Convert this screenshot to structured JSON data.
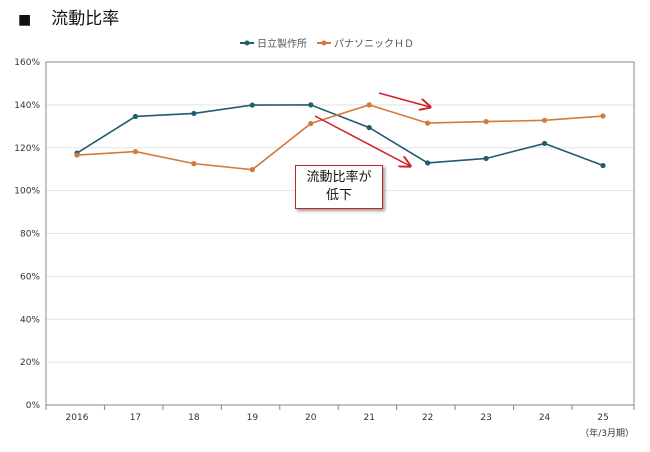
{
  "heading": {
    "marker": "■",
    "text": "流動比率"
  },
  "chart_data": {
    "type": "line",
    "title": "",
    "categories": [
      "2016",
      "17",
      "18",
      "19",
      "20",
      "21",
      "22",
      "23",
      "24",
      "25"
    ],
    "xlabel": "（年/3月期）",
    "ylabel": "",
    "ylim": [
      0,
      160
    ],
    "yticks": [
      "0%",
      "20%",
      "40%",
      "60%",
      "80%",
      "100%",
      "120%",
      "140%",
      "160%"
    ],
    "grid": true,
    "legend": "top-center",
    "series": [
      {
        "name": "日立製作所",
        "color": "#1f5c70",
        "values": [
          117.5,
          134.6,
          136,
          139.9,
          140,
          129.4,
          112.9,
          115,
          122,
          111.7
        ]
      },
      {
        "name": "パナソニックＨＤ",
        "color": "#d4793a",
        "values": [
          116.6,
          118.2,
          112.6,
          109.8,
          131.3,
          140,
          131.5,
          132.2,
          132.8,
          134.8
        ]
      }
    ],
    "annotations": [
      {
        "text_line1": "流動比率が",
        "text_line2": "低下",
        "arrow_color": "#d0202a"
      }
    ]
  }
}
